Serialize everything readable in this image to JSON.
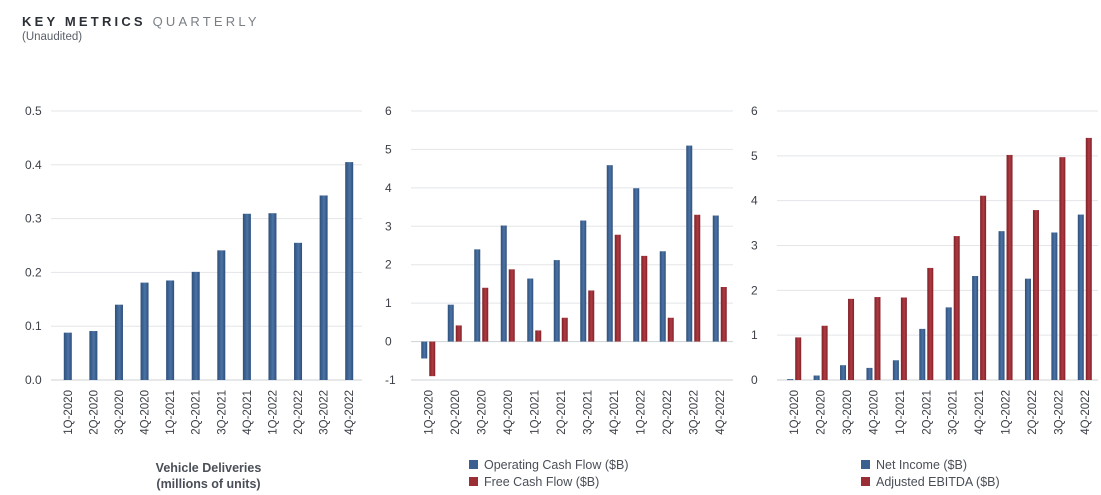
{
  "header": {
    "title_bold": "KEY METRICS",
    "title_light": "QUARTERLY",
    "subtitle": "(Unaudited)"
  },
  "colors": {
    "blue": "#3b5f8f",
    "red": "#9b2e35",
    "grid": "#e3e5e8",
    "axis": "#cfd2d6"
  },
  "chart_data": [
    {
      "type": "bar",
      "title": "",
      "xlabel": "Vehicle Deliveries\n(millions of units)",
      "ylabel": "",
      "ylim": [
        0,
        0.5
      ],
      "yticks": [
        "0.0",
        "0.1",
        "0.2",
        "0.3",
        "0.4",
        "0.5"
      ],
      "grid": true,
      "categories": [
        "1Q-2020",
        "2Q-2020",
        "3Q-2020",
        "4Q-2020",
        "1Q-2021",
        "2Q-2021",
        "3Q-2021",
        "4Q-2021",
        "1Q-2022",
        "2Q-2022",
        "3Q-2022",
        "4Q-2022"
      ],
      "series": [
        {
          "values": [
            0.088,
            0.091,
            0.14,
            0.181,
            0.185,
            0.201,
            0.241,
            0.309,
            0.31,
            0.255,
            0.343,
            0.405
          ]
        }
      ]
    },
    {
      "type": "bar",
      "title": "",
      "xlabel": "",
      "ylabel": "",
      "ylim": [
        -1,
        6
      ],
      "yticks": [
        "-1",
        "0",
        "1",
        "2",
        "3",
        "4",
        "5",
        "6"
      ],
      "grid": true,
      "legend": "bottom",
      "categories": [
        "1Q-2020",
        "2Q-2020",
        "3Q-2020",
        "4Q-2020",
        "1Q-2021",
        "2Q-2021",
        "3Q-2021",
        "4Q-2021",
        "1Q-2022",
        "2Q-2022",
        "3Q-2022",
        "4Q-2022"
      ],
      "series": [
        {
          "name": "Operating Cash Flow ($B)",
          "values": [
            -0.44,
            0.96,
            2.4,
            3.02,
            1.64,
            2.12,
            3.15,
            4.59,
            3.99,
            2.35,
            5.1,
            3.28
          ]
        },
        {
          "name": "Free Cash Flow ($B)",
          "values": [
            -0.9,
            0.42,
            1.4,
            1.88,
            0.29,
            0.62,
            1.33,
            2.78,
            2.23,
            0.62,
            3.3,
            1.42
          ]
        }
      ]
    },
    {
      "type": "bar",
      "title": "",
      "xlabel": "",
      "ylabel": "",
      "ylim": [
        0,
        6
      ],
      "yticks": [
        "0",
        "1",
        "2",
        "3",
        "4",
        "5",
        "6"
      ],
      "grid": true,
      "legend": "bottom",
      "categories": [
        "1Q-2020",
        "2Q-2020",
        "3Q-2020",
        "4Q-2020",
        "1Q-2021",
        "2Q-2021",
        "3Q-2021",
        "4Q-2021",
        "1Q-2022",
        "2Q-2022",
        "3Q-2022",
        "4Q-2022"
      ],
      "series": [
        {
          "name": "Net Income ($B)",
          "values": [
            0.02,
            0.1,
            0.33,
            0.27,
            0.44,
            1.14,
            1.62,
            2.32,
            3.32,
            2.26,
            3.29,
            3.69
          ]
        },
        {
          "name": "Adjusted EBITDA ($B)",
          "values": [
            0.95,
            1.21,
            1.81,
            1.85,
            1.84,
            2.5,
            3.21,
            4.11,
            5.02,
            3.79,
            4.97,
            5.4
          ]
        }
      ]
    }
  ]
}
